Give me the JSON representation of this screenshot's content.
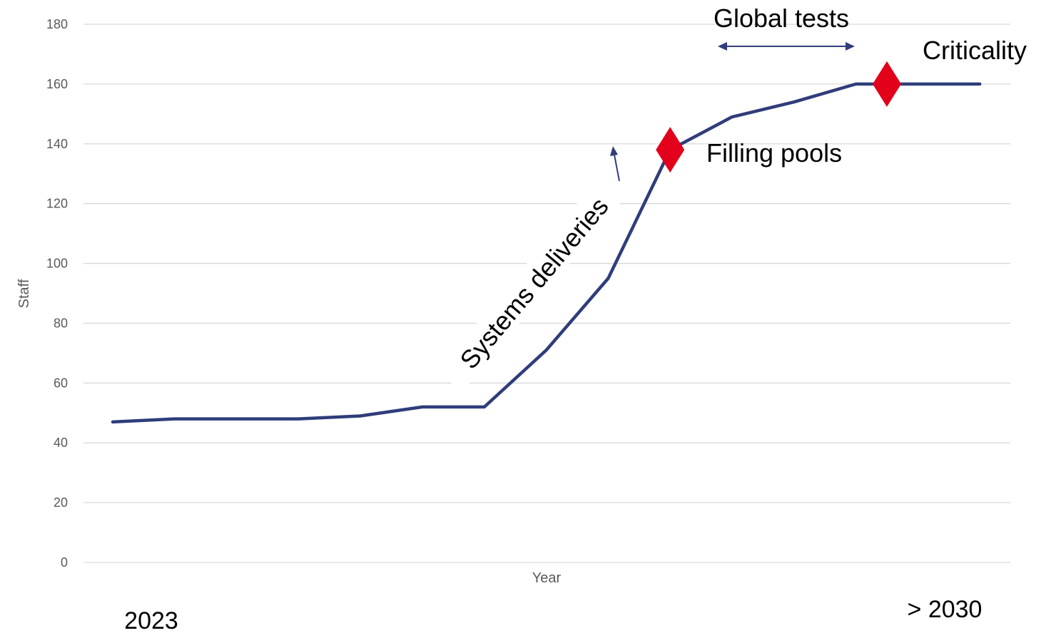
{
  "chart_data": {
    "type": "line",
    "xlabel": "Year",
    "ylabel": "Staff",
    "ylim": [
      0,
      180
    ],
    "yticks": [
      0,
      20,
      40,
      60,
      80,
      100,
      120,
      140,
      160,
      180
    ],
    "grid": true,
    "x_start_label": "2023",
    "x_end_label": "> 2030",
    "series": [
      {
        "color": "#2f3d7a",
        "x": [
          0,
          1,
          2,
          3,
          4,
          5,
          6,
          7,
          8,
          9,
          10,
          11,
          12,
          13,
          14
        ],
        "values": [
          47,
          48,
          48,
          48,
          49,
          52,
          52,
          71,
          95,
          138,
          149,
          154,
          160,
          160,
          160
        ]
      }
    ],
    "milestones": [
      {
        "x": 9,
        "y": 138,
        "color": "#e3001b"
      },
      {
        "x": 12.5,
        "y": 160,
        "color": "#e3001b"
      }
    ],
    "annotations": {
      "global_tests": "Global tests",
      "criticality": "Criticality",
      "filling_pools": "Filling pools",
      "systems_deliveries": "Systems deliveries"
    }
  }
}
